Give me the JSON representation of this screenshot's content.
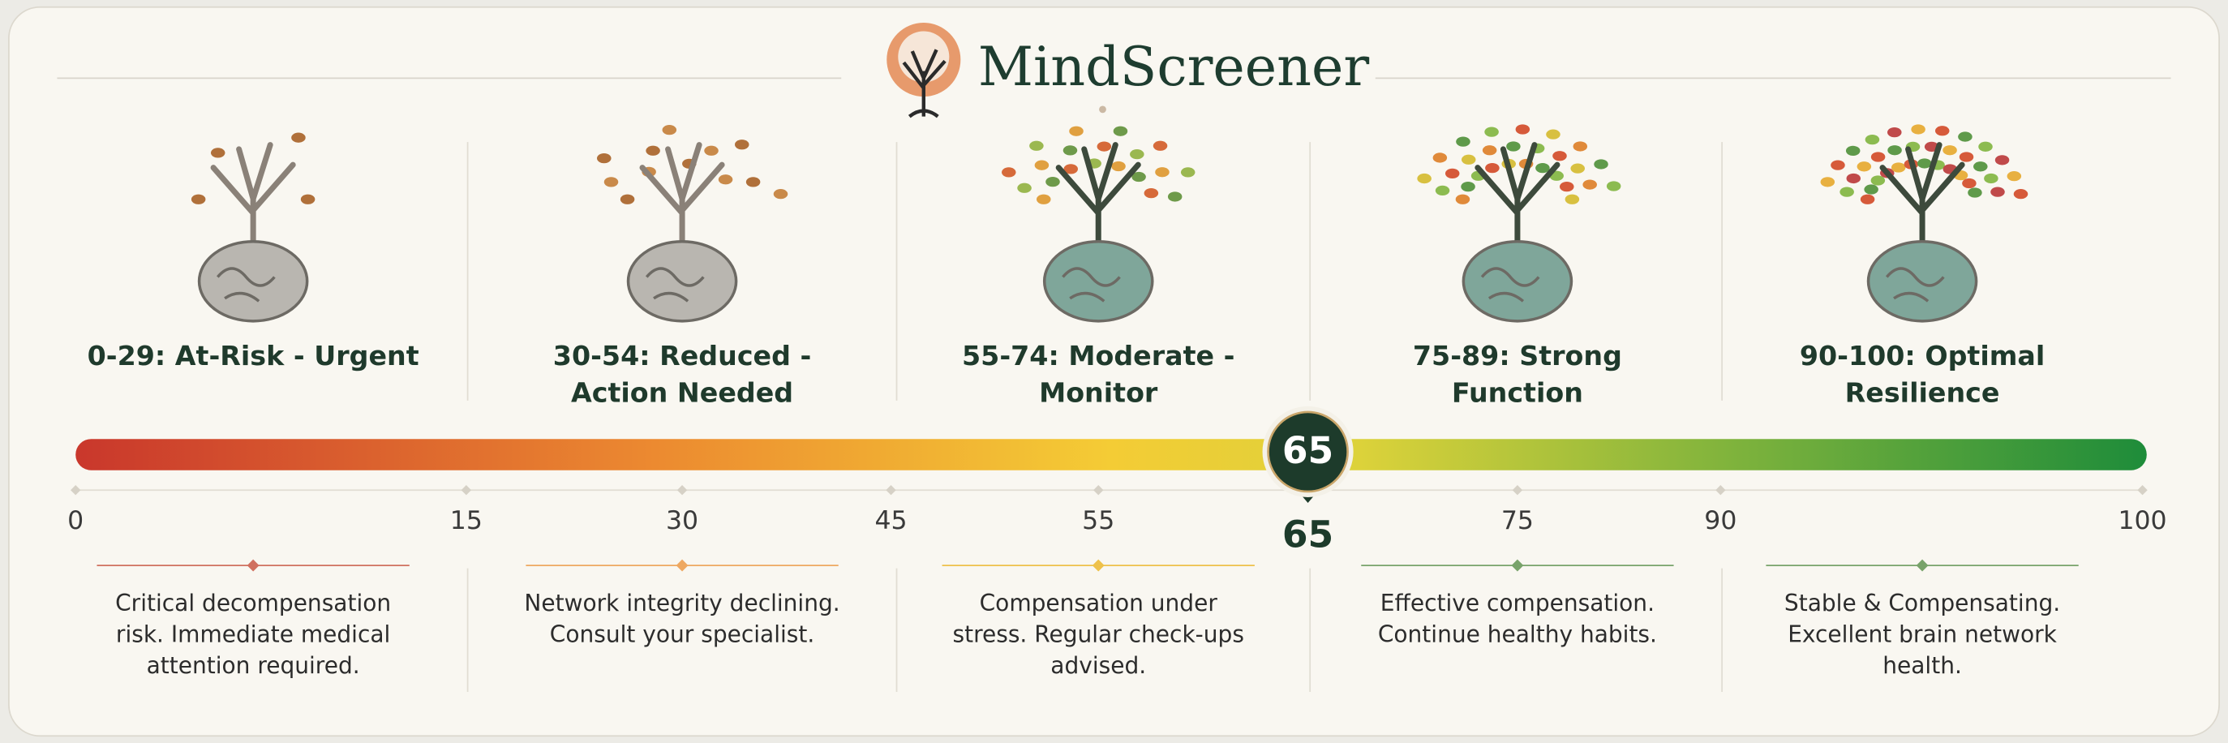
{
  "header": {
    "title": "MindScreener"
  },
  "categories": [
    {
      "title": "0-29: At-Risk - Urgent",
      "description": "Critical decompensation risk. Immediate medical attention required.",
      "color": "#d0705f"
    },
    {
      "title": "30-54: Reduced - Action Needed",
      "description": "Network integrity declining. Consult your specialist.",
      "color": "#eea861"
    },
    {
      "title": "55-74: Moderate - Monitor",
      "description": "Compensation under stress. Regular check-ups advised.",
      "color": "#eec14a"
    },
    {
      "title": "75-89: Strong Function",
      "description": "Effective compensation. Continue healthy habits.",
      "color": "#78a36a"
    },
    {
      "title": "90-100: Optimal Resilience",
      "description": "Stable & Compensating. Excellent brain network health.",
      "color": "#78a36a"
    }
  ],
  "scale": {
    "ticks": [
      0,
      15,
      30,
      45,
      55,
      75,
      90,
      100
    ],
    "score": 65
  }
}
